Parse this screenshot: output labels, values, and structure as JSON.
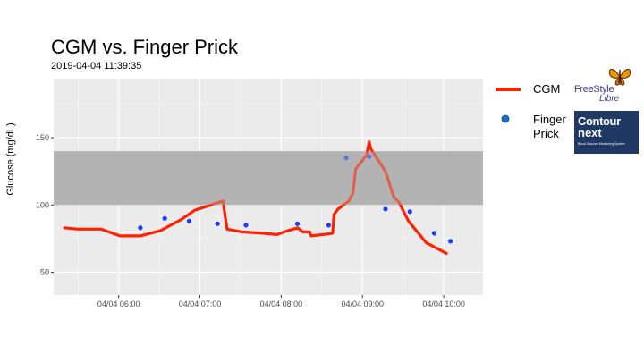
{
  "chart_data": {
    "type": "line",
    "title": "CGM vs. Finger Prick",
    "subtitle": "2019-04-04 11:39:35",
    "ylabel": "Glucose (mg/dL)",
    "xlabel": "",
    "ylim": [
      33,
      194
    ],
    "yticks": [
      50,
      100,
      150
    ],
    "xlim": [
      "2019-04-04 05:12",
      "2019-04-04 10:29"
    ],
    "xticks": [
      {
        "t": "2019-04-04 06:00",
        "label": "04/04 06:00"
      },
      {
        "t": "2019-04-04 07:00",
        "label": "04/04 07:00"
      },
      {
        "t": "2019-04-04 08:00",
        "label": "04/04 08:00"
      },
      {
        "t": "2019-04-04 09:00",
        "label": "04/04 09:00"
      },
      {
        "t": "2019-04-04 10:00",
        "label": "04/04 10:00"
      }
    ],
    "target_band": [
      100,
      140
    ],
    "grid": true,
    "legend_position": "right",
    "series": [
      {
        "name": "CGM",
        "kind": "line",
        "color": "#ff2200",
        "points": [
          [
            "2019-04-04 05:20",
            83
          ],
          [
            "2019-04-04 05:30",
            82
          ],
          [
            "2019-04-04 05:47",
            82
          ],
          [
            "2019-04-04 06:01",
            77
          ],
          [
            "2019-04-04 06:16",
            77
          ],
          [
            "2019-04-04 06:31",
            81
          ],
          [
            "2019-04-04 06:46",
            89
          ],
          [
            "2019-04-04 06:56",
            96
          ],
          [
            "2019-04-04 07:05",
            99
          ],
          [
            "2019-04-04 07:11",
            101
          ],
          [
            "2019-04-04 07:17",
            103
          ],
          [
            "2019-04-04 07:20",
            82
          ],
          [
            "2019-04-04 07:31",
            80
          ],
          [
            "2019-04-04 07:46",
            79
          ],
          [
            "2019-04-04 07:57",
            78
          ],
          [
            "2019-04-04 08:05",
            81
          ],
          [
            "2019-04-04 08:09",
            82
          ],
          [
            "2019-04-04 08:12",
            83
          ],
          [
            "2019-04-04 08:16",
            80
          ],
          [
            "2019-04-04 08:20",
            80
          ],
          [
            "2019-04-04 08:21",
            80
          ],
          [
            "2019-04-04 08:22",
            77
          ],
          [
            "2019-04-04 08:31",
            78
          ],
          [
            "2019-04-04 08:38",
            79
          ],
          [
            "2019-04-04 08:39",
            93
          ],
          [
            "2019-04-04 08:42",
            97
          ],
          [
            "2019-04-04 08:50",
            103
          ],
          [
            "2019-04-04 08:53",
            109
          ],
          [
            "2019-04-04 08:55",
            127
          ],
          [
            "2019-04-04 09:03",
            137
          ],
          [
            "2019-04-04 09:05",
            147
          ],
          [
            "2019-04-04 09:06",
            142
          ],
          [
            "2019-04-04 09:17",
            125
          ],
          [
            "2019-04-04 09:23",
            106
          ],
          [
            "2019-04-04 09:27",
            102
          ],
          [
            "2019-04-04 09:34",
            88
          ],
          [
            "2019-04-04 09:47",
            72
          ],
          [
            "2019-04-04 10:02",
            64
          ]
        ]
      },
      {
        "name": "Finger Prick",
        "kind": "points",
        "color": "#1a3cff",
        "points": [
          [
            "2019-04-04 06:16",
            83
          ],
          [
            "2019-04-04 06:34",
            90
          ],
          [
            "2019-04-04 06:52",
            88
          ],
          [
            "2019-04-04 07:13",
            86
          ],
          [
            "2019-04-04 07:34",
            85
          ],
          [
            "2019-04-04 08:12",
            86
          ],
          [
            "2019-04-04 08:35",
            85
          ],
          [
            "2019-04-04 08:48",
            135
          ],
          [
            "2019-04-04 09:05",
            136
          ],
          [
            "2019-04-04 09:17",
            97
          ],
          [
            "2019-04-04 09:35",
            95
          ],
          [
            "2019-04-04 09:53",
            79
          ],
          [
            "2019-04-04 10:05",
            73
          ]
        ]
      }
    ]
  },
  "legend": {
    "cgm_label": "CGM",
    "finger_label_line1": "Finger",
    "finger_label_line2": "Prick"
  },
  "logos": {
    "freestyle_line1": "FreeStyle",
    "freestyle_line2": "Libre",
    "contour_line1": "Contour",
    "contour_line2": "next",
    "contour_tagline": "Blood Glucose Monitoring System"
  }
}
